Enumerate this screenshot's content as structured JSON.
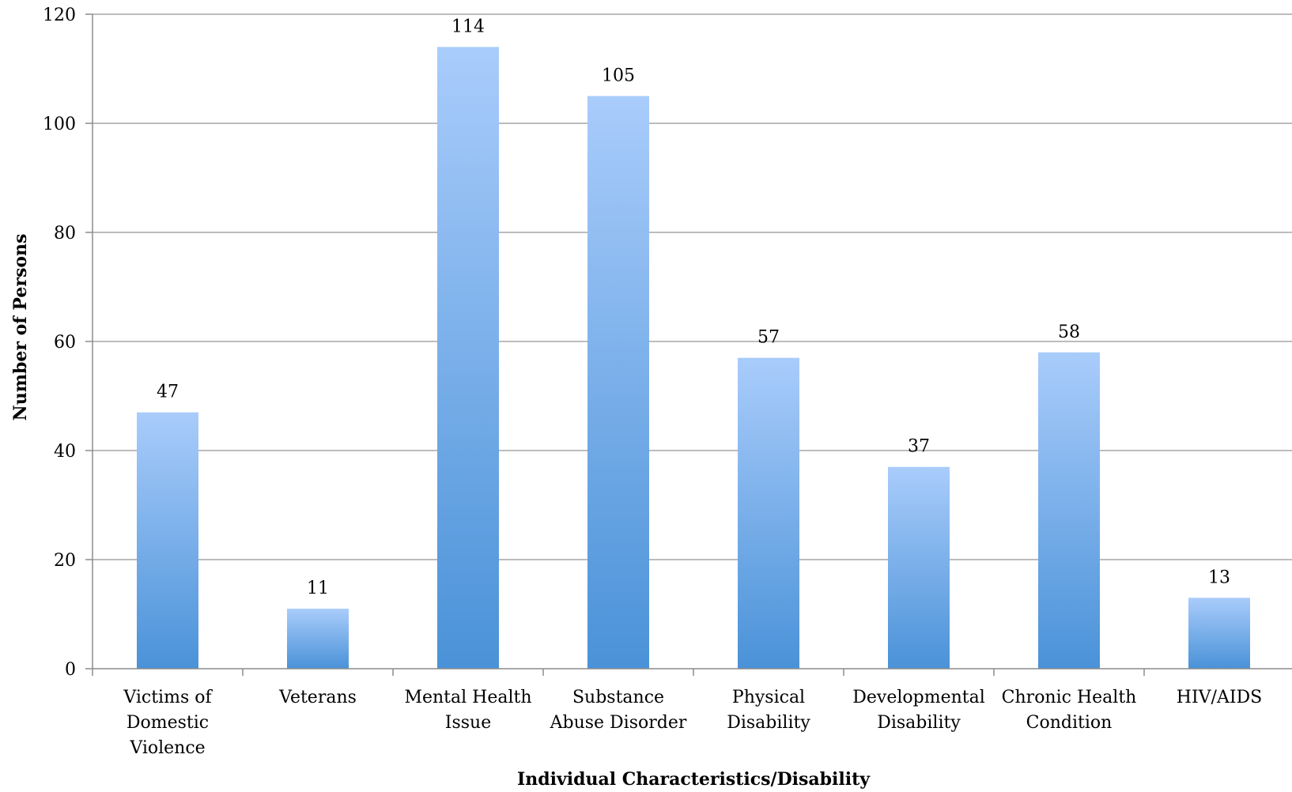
{
  "chart_data": {
    "type": "bar",
    "title": "",
    "xlabel": "Individual Characteristics/Disability",
    "ylabel": "Number of Persons",
    "ylim": [
      0,
      120
    ],
    "yticks": [
      0,
      20,
      40,
      60,
      80,
      100,
      120
    ],
    "grid": true,
    "legend": "none",
    "categories": [
      [
        "Victims of",
        "Domestic",
        "Violence"
      ],
      [
        "Veterans"
      ],
      [
        "Mental Health",
        "Issue"
      ],
      [
        "Substance",
        "Abuse Disorder"
      ],
      [
        "Physical",
        "Disability"
      ],
      [
        "Developmental",
        "Disability"
      ],
      [
        "Chronic Health",
        "Condition"
      ],
      [
        "HIV/AIDS"
      ]
    ],
    "values": [
      47,
      11,
      114,
      105,
      57,
      37,
      58,
      13
    ],
    "colors": {
      "bar_top": "#a9ccfb",
      "bar_bottom": "#4a92d8"
    }
  }
}
